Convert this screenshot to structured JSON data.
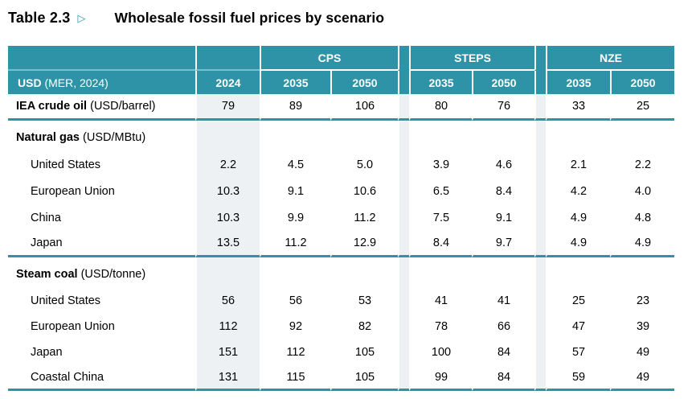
{
  "title": {
    "number": "Table 2.3",
    "arrow": "▷",
    "text": "Wholesale fossil fuel prices by scenario"
  },
  "colors": {
    "teal": "#2E93A6",
    "shade": "#EDF1F4"
  },
  "header": {
    "corner_bold": "USD",
    "corner_rest": " (MER, 2024)",
    "base_year": "2024",
    "groups": [
      {
        "name": "CPS",
        "years": [
          "2035",
          "2050"
        ]
      },
      {
        "name": "STEPS",
        "years": [
          "2035",
          "2050"
        ]
      },
      {
        "name": "NZE",
        "years": [
          "2035",
          "2050"
        ]
      }
    ]
  },
  "rows": [
    {
      "type": "data",
      "label_bold": "IEA crude oil",
      "label_unit": " (USD/barrel)",
      "indent": false,
      "values": [
        "79",
        "89",
        "106",
        "80",
        "76",
        "33",
        "25"
      ],
      "rule_after": true
    },
    {
      "type": "section",
      "label_bold": "Natural gas",
      "label_unit": " (USD/MBtu)"
    },
    {
      "type": "data",
      "label": "United States",
      "indent": true,
      "values": [
        "2.2",
        "4.5",
        "5.0",
        "3.9",
        "4.6",
        "2.1",
        "2.2"
      ]
    },
    {
      "type": "data",
      "label": "European Union",
      "indent": true,
      "values": [
        "10.3",
        "9.1",
        "10.6",
        "6.5",
        "8.4",
        "4.2",
        "4.0"
      ]
    },
    {
      "type": "data",
      "label": "China",
      "indent": true,
      "values": [
        "10.3",
        "9.9",
        "11.2",
        "7.5",
        "9.1",
        "4.9",
        "4.8"
      ]
    },
    {
      "type": "data",
      "label": "Japan",
      "indent": true,
      "values": [
        "13.5",
        "11.2",
        "12.9",
        "8.4",
        "9.7",
        "4.9",
        "4.9"
      ],
      "rule_after": true
    },
    {
      "type": "section",
      "label_bold": "Steam coal",
      "label_unit": " (USD/tonne)"
    },
    {
      "type": "data",
      "label": "United States",
      "indent": true,
      "compact": true,
      "values": [
        "56",
        "56",
        "53",
        "41",
        "41",
        "25",
        "23"
      ]
    },
    {
      "type": "data",
      "label": "European Union",
      "indent": true,
      "compact": true,
      "values": [
        "112",
        "92",
        "82",
        "78",
        "66",
        "47",
        "39"
      ]
    },
    {
      "type": "data",
      "label": "Japan",
      "indent": true,
      "compact": true,
      "values": [
        "151",
        "112",
        "105",
        "100",
        "84",
        "57",
        "49"
      ]
    },
    {
      "type": "data",
      "label": "Coastal China",
      "indent": true,
      "compact": true,
      "values": [
        "131",
        "115",
        "105",
        "99",
        "84",
        "59",
        "49"
      ],
      "rule_after": true
    }
  ]
}
